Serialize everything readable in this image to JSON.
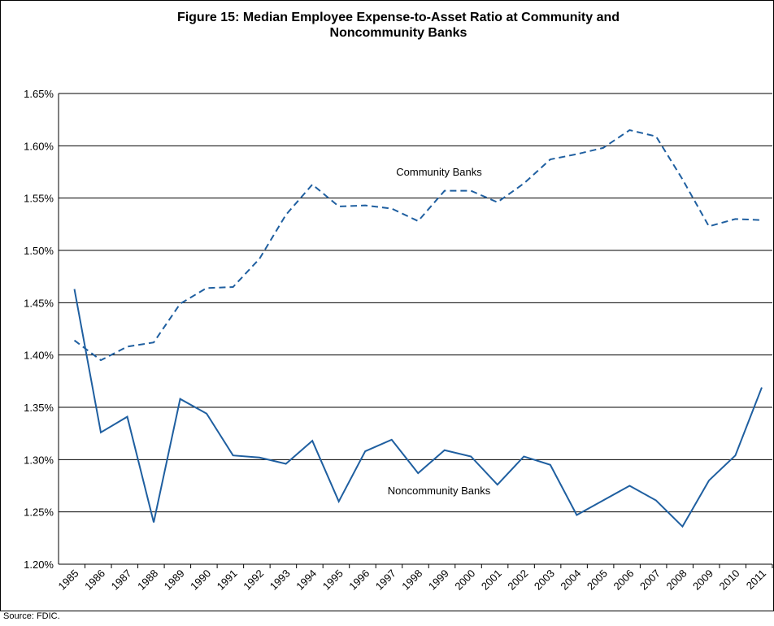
{
  "chart_data": {
    "type": "line",
    "title": "Figure 15: Median Employee Expense-to-Asset Ratio at Community and Noncommunity Banks",
    "source": "Source: FDIC.",
    "categories": [
      "1985",
      "1986",
      "1987",
      "1988",
      "1989",
      "1990",
      "1991",
      "1992",
      "1993",
      "1994",
      "1995",
      "1996",
      "1997",
      "1998",
      "1999",
      "2000",
      "2001",
      "2002",
      "2003",
      "2004",
      "2005",
      "2006",
      "2007",
      "2008",
      "2009",
      "2010",
      "2011"
    ],
    "series": [
      {
        "name": "Community Banks",
        "color": "#1f5fa0",
        "dashed": true,
        "values": [
          1.414,
          1.395,
          1.408,
          1.412,
          1.449,
          1.464,
          1.465,
          1.492,
          1.534,
          1.563,
          1.542,
          1.543,
          1.54,
          1.528,
          1.557,
          1.557,
          1.546,
          1.564,
          1.587,
          1.592,
          1.598,
          1.615,
          1.609,
          1.568,
          1.523,
          1.53,
          1.529
        ]
      },
      {
        "name": "Noncommunity Banks",
        "color": "#1f5fa0",
        "dashed": false,
        "values": [
          1.463,
          1.326,
          1.341,
          1.24,
          1.358,
          1.344,
          1.304,
          1.302,
          1.296,
          1.318,
          1.26,
          1.308,
          1.319,
          1.287,
          1.309,
          1.303,
          1.276,
          1.303,
          1.295,
          1.247,
          1.261,
          1.275,
          1.261,
          1.236,
          1.28,
          1.304,
          1.369
        ]
      }
    ],
    "ylim": [
      1.2,
      1.65
    ],
    "yticks": [
      {
        "value": 1.2,
        "label": "1.20%"
      },
      {
        "value": 1.25,
        "label": "1.25%"
      },
      {
        "value": 1.3,
        "label": "1.30%"
      },
      {
        "value": 1.35,
        "label": "1.35%"
      },
      {
        "value": 1.4,
        "label": "1.40%"
      },
      {
        "value": 1.45,
        "label": "1.45%"
      },
      {
        "value": 1.5,
        "label": "1.50%"
      },
      {
        "value": 1.55,
        "label": "1.55%"
      },
      {
        "value": 1.6,
        "label": "1.60%"
      },
      {
        "value": 1.65,
        "label": "1.65%"
      }
    ],
    "grid": true
  }
}
